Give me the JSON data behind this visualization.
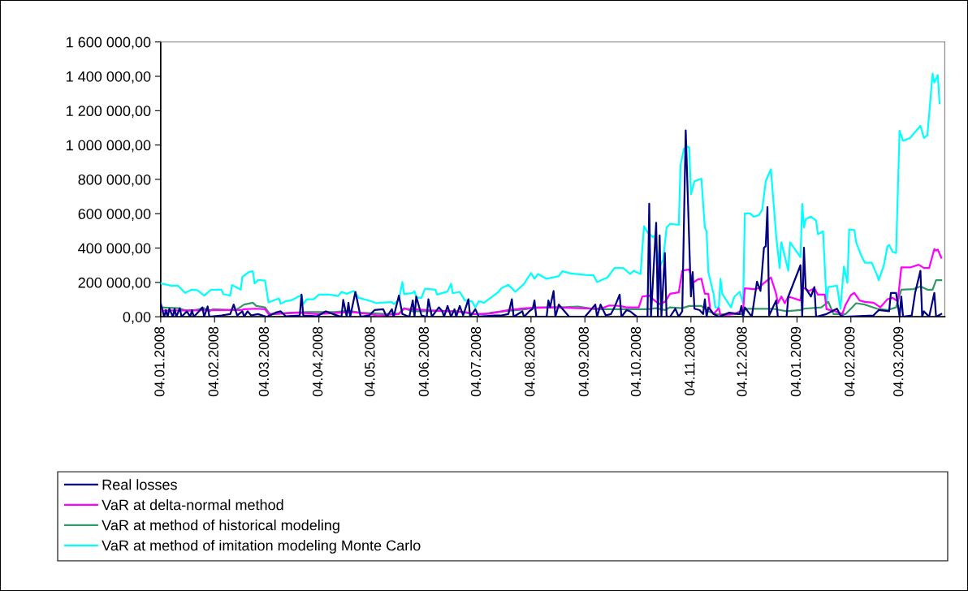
{
  "chart_data": {
    "type": "line",
    "legend": "bottom",
    "line_style": "solid",
    "grid": false,
    "xlim": [
      "2008-01-04",
      "2009-03-30"
    ],
    "xticks": [
      {
        "value": "2008-01-04",
        "label": "04.01.2008"
      },
      {
        "value": "2008-02-04",
        "label": "04.02.2008"
      },
      {
        "value": "2008-03-04",
        "label": "04.03.2008"
      },
      {
        "value": "2008-04-04",
        "label": "04.04.2008"
      },
      {
        "value": "2008-05-04",
        "label": "04.05.2008"
      },
      {
        "value": "2008-06-04",
        "label": "04.06.2008"
      },
      {
        "value": "2008-07-04",
        "label": "04.07.2008"
      },
      {
        "value": "2008-08-04",
        "label": "04.08.2008"
      },
      {
        "value": "2008-09-04",
        "label": "04.09.2008"
      },
      {
        "value": "2008-10-04",
        "label": "04.10.2008"
      },
      {
        "value": "2008-11-04",
        "label": "04.11.2008"
      },
      {
        "value": "2008-12-04",
        "label": "04.12.2008"
      },
      {
        "value": "2009-01-04",
        "label": "04.01.2009"
      },
      {
        "value": "2009-02-04",
        "label": "04.02.2009"
      },
      {
        "value": "2009-03-04",
        "label": "04.03.2009"
      }
    ],
    "ylim": [
      0,
      1600000
    ],
    "yticks": [
      {
        "value": 0,
        "label": "0,00"
      },
      {
        "value": 200000,
        "label": "200 000,00"
      },
      {
        "value": 400000,
        "label": "400 000,00"
      },
      {
        "value": 600000,
        "label": "600 000,00"
      },
      {
        "value": 800000,
        "label": "800 000,00"
      },
      {
        "value": 1000000,
        "label": "1 000 000,00"
      },
      {
        "value": 1200000,
        "label": "1 200 000,00"
      },
      {
        "value": 1400000,
        "label": "1 400 000,00"
      },
      {
        "value": 1600000,
        "label": "1 600 000,00"
      }
    ],
    "series": [
      {
        "name": "Real losses",
        "color": "#000080",
        "x": [
          "2008-01-04",
          "2008-01-06",
          "2008-01-07",
          "2008-01-08",
          "2008-01-09",
          "2008-01-11",
          "2008-01-12",
          "2008-01-13",
          "2008-01-15",
          "2008-01-16",
          "2008-01-19",
          "2008-01-21",
          "2008-01-22",
          "2008-01-23",
          "2008-01-26",
          "2008-01-28",
          "2008-01-29",
          "2008-01-31",
          "2008-02-01",
          "2008-02-08",
          "2008-02-13",
          "2008-02-15",
          "2008-02-17",
          "2008-02-20",
          "2008-02-21",
          "2008-02-23",
          "2008-02-25",
          "2008-02-29",
          "2008-03-05",
          "2008-03-10",
          "2008-03-13",
          "2008-03-16",
          "2008-03-24",
          "2008-03-25",
          "2008-03-26",
          "2008-04-03",
          "2008-04-08",
          "2008-04-12",
          "2008-04-17",
          "2008-04-18",
          "2008-04-20",
          "2008-04-21",
          "2008-04-22",
          "2008-04-25",
          "2008-04-28",
          "2008-05-03",
          "2008-05-06",
          "2008-05-11",
          "2008-05-13",
          "2008-05-16",
          "2008-05-17",
          "2008-05-20",
          "2008-05-22",
          "2008-05-26",
          "2008-05-28",
          "2008-05-29",
          "2008-05-30",
          "2008-06-02",
          "2008-06-05",
          "2008-06-06",
          "2008-06-08",
          "2008-06-12",
          "2008-06-14",
          "2008-06-15",
          "2008-06-17",
          "2008-06-19",
          "2008-06-21",
          "2008-06-22",
          "2008-06-24",
          "2008-06-26",
          "2008-06-29",
          "2008-06-30",
          "2008-07-03",
          "2008-07-05",
          "2008-07-14",
          "2008-07-18",
          "2008-07-22",
          "2008-07-24",
          "2008-07-25",
          "2008-07-30",
          "2008-07-31",
          "2008-08-03",
          "2008-08-05",
          "2008-08-06",
          "2008-08-07",
          "2008-08-13",
          "2008-08-14",
          "2008-08-15",
          "2008-08-17",
          "2008-08-18",
          "2008-08-20",
          "2008-08-26",
          "2008-09-04",
          "2008-09-10",
          "2008-09-11",
          "2008-09-13",
          "2008-09-16",
          "2008-09-19",
          "2008-09-21",
          "2008-09-24",
          "2008-09-25",
          "2008-09-28",
          "2008-09-30",
          "2008-10-02",
          "2008-10-04",
          "2008-10-10",
          "2008-10-11",
          "2008-10-12",
          "2008-10-15",
          "2008-10-16",
          "2008-10-17",
          "2008-10-18",
          "2008-10-20",
          "2008-10-21",
          "2008-10-23",
          "2008-10-26",
          "2008-10-28",
          "2008-10-30",
          "2008-11-01",
          "2008-11-04",
          "2008-11-05",
          "2008-11-06",
          "2008-11-09",
          "2008-11-11",
          "2008-11-12",
          "2008-11-13",
          "2008-11-14",
          "2008-11-17",
          "2008-11-20",
          "2008-11-26",
          "2008-12-02",
          "2008-12-03",
          "2008-12-04",
          "2008-12-05",
          "2008-12-09",
          "2008-12-12",
          "2008-12-14",
          "2008-12-16",
          "2008-12-17",
          "2008-12-18",
          "2008-12-19",
          "2008-12-23",
          "2008-12-24",
          "2008-12-29",
          "2008-12-30",
          "2009-01-06",
          "2009-01-07",
          "2009-01-08",
          "2009-01-09",
          "2009-01-12",
          "2009-01-14",
          "2009-01-15",
          "2009-01-21",
          "2009-01-27",
          "2009-01-29",
          "2009-02-01",
          "2009-02-17",
          "2009-02-20",
          "2009-02-26",
          "2009-02-27",
          "2009-03-02",
          "2009-03-04",
          "2009-03-05",
          "2009-03-06",
          "2009-03-11",
          "2009-03-13",
          "2009-03-16",
          "2009-03-17",
          "2009-03-18",
          "2009-03-21",
          "2009-03-24",
          "2009-03-25",
          "2009-03-28"
        ],
        "values": [
          79000,
          0,
          39000,
          0,
          47000,
          0,
          47000,
          0,
          50000,
          0,
          32000,
          0,
          39000,
          0,
          32000,
          55000,
          0,
          60000,
          0,
          8000,
          16000,
          71000,
          8000,
          32000,
          0,
          32000,
          8000,
          16000,
          0,
          24000,
          32000,
          3000,
          8000,
          129000,
          8000,
          3000,
          32000,
          16000,
          0,
          98000,
          0,
          82000,
          0,
          145000,
          0,
          8000,
          39000,
          44000,
          0,
          44000,
          0,
          123000,
          16000,
          0,
          95000,
          0,
          118000,
          8000,
          0,
          102000,
          0,
          55000,
          32000,
          0,
          63000,
          0,
          44000,
          0,
          63000,
          8000,
          102000,
          0,
          44000,
          0,
          8000,
          8000,
          16000,
          102000,
          0,
          32000,
          0,
          32000,
          47000,
          95000,
          0,
          0,
          95000,
          55000,
          150000,
          0,
          71000,
          0,
          0,
          71000,
          0,
          71000,
          8000,
          16000,
          55000,
          129000,
          0,
          39000,
          32000,
          16000,
          0,
          0,
          659000,
          0,
          547000,
          0,
          473000,
          0,
          371000,
          0,
          0,
          47000,
          0,
          32000,
          1085000,
          118000,
          260000,
          47000,
          39000,
          16000,
          102000,
          0,
          55000,
          16000,
          0,
          24000,
          16000,
          63000,
          0,
          55000,
          0,
          205000,
          150000,
          402000,
          410000,
          639000,
          8000,
          95000,
          0,
          0,
          118000,
          300000,
          0,
          402000,
          166000,
          118000,
          173000,
          0,
          16000,
          47000,
          8000,
          0,
          8000,
          39000,
          32000,
          139000,
          139000,
          0,
          118000,
          0,
          8000,
          142000,
          268000,
          0,
          32000,
          0,
          139000,
          0,
          16000
        ]
      },
      {
        "name": "VaR at delta-normal method",
        "color": "#ff00ff",
        "x": [
          "2008-01-04",
          "2008-02-13",
          "2008-02-19",
          "2008-02-21",
          "2008-02-28",
          "2008-03-04",
          "2008-03-06",
          "2008-03-24",
          "2008-04-03",
          "2008-04-23",
          "2008-05-03",
          "2008-05-08",
          "2008-05-20",
          "2008-05-23",
          "2008-06-04",
          "2008-06-12",
          "2008-06-27",
          "2008-07-03",
          "2008-07-12",
          "2008-07-22",
          "2008-08-01",
          "2008-08-16",
          "2008-08-31",
          "2008-09-10",
          "2008-09-14",
          "2008-09-18",
          "2008-09-24",
          "2008-09-28",
          "2008-10-05",
          "2008-10-07",
          "2008-10-11",
          "2008-10-14",
          "2008-10-17",
          "2008-10-20",
          "2008-10-23",
          "2008-10-28",
          "2008-10-30",
          "2008-11-03",
          "2008-11-05",
          "2008-11-08",
          "2008-11-10",
          "2008-11-12",
          "2008-11-14",
          "2008-11-15",
          "2008-11-17",
          "2008-11-20",
          "2008-11-21",
          "2008-11-29",
          "2008-12-03",
          "2008-12-04",
          "2008-12-05",
          "2008-12-10",
          "2008-12-13",
          "2008-12-16",
          "2008-12-20",
          "2008-12-23",
          "2008-12-24",
          "2008-12-26",
          "2008-12-28",
          "2008-12-30",
          "2009-01-06",
          "2009-01-07",
          "2009-01-11",
          "2009-01-14",
          "2009-01-16",
          "2009-01-20",
          "2009-01-21",
          "2009-01-26",
          "2009-01-30",
          "2009-02-01",
          "2009-02-04",
          "2009-02-06",
          "2009-02-09",
          "2009-02-12",
          "2009-02-17",
          "2009-02-21",
          "2009-02-25",
          "2009-02-28",
          "2009-03-03",
          "2009-03-05",
          "2009-03-10",
          "2009-03-15",
          "2009-03-18",
          "2009-03-21",
          "2009-03-24",
          "2009-03-25",
          "2009-03-26",
          "2009-03-28"
        ],
        "values": [
          36000,
          39000,
          39000,
          44000,
          47000,
          44000,
          16000,
          24000,
          16000,
          28000,
          16000,
          8000,
          16000,
          47000,
          39000,
          35000,
          28000,
          16000,
          19000,
          39000,
          50000,
          55000,
          50000,
          47000,
          50000,
          66000,
          63000,
          55000,
          55000,
          118000,
          123000,
          95000,
          74000,
          87000,
          134000,
          142000,
          268000,
          276000,
          197000,
          218000,
          221000,
          134000,
          134000,
          47000,
          16000,
          50000,
          8000,
          16000,
          35000,
          39000,
          166000,
          161000,
          166000,
          197000,
          229000,
          134000,
          79000,
          118000,
          79000,
          118000,
          95000,
          173000,
          150000,
          166000,
          129000,
          129000,
          44000,
          32000,
          16000,
          71000,
          126000,
          139000,
          95000,
          87000,
          82000,
          55000,
          102000,
          110000,
          91000,
          287000,
          287000,
          303000,
          284000,
          284000,
          394000,
          386000,
          391000,
          344000
        ]
      },
      {
        "name": "VaR at method of historical modeling",
        "color": "#339966",
        "x": [
          "2008-01-04",
          "2008-01-14",
          "2008-01-19",
          "2008-01-24",
          "2008-01-29",
          "2008-02-01",
          "2008-02-03",
          "2008-02-13",
          "2008-02-17",
          "2008-02-21",
          "2008-02-26",
          "2008-02-28",
          "2008-03-04",
          "2008-03-07",
          "2008-03-19",
          "2008-03-29",
          "2008-04-13",
          "2008-04-21",
          "2008-04-28",
          "2008-05-13",
          "2008-05-20",
          "2008-05-23",
          "2008-05-28",
          "2008-06-04",
          "2008-06-12",
          "2008-06-22",
          "2008-07-02",
          "2008-07-08",
          "2008-07-12",
          "2008-07-22",
          "2008-08-01",
          "2008-08-06",
          "2008-08-21",
          "2008-08-31",
          "2008-09-10",
          "2008-09-20",
          "2008-09-30",
          "2008-10-10",
          "2008-10-15",
          "2008-10-20",
          "2008-10-23",
          "2008-10-30",
          "2008-11-03",
          "2008-11-10",
          "2008-11-14",
          "2008-11-19",
          "2008-11-29",
          "2008-12-04",
          "2008-12-05",
          "2008-12-21",
          "2008-12-29",
          "2009-01-06",
          "2009-01-08",
          "2009-01-18",
          "2009-01-22",
          "2009-01-25",
          "2009-02-01",
          "2009-02-04",
          "2009-02-07",
          "2009-02-12",
          "2009-02-19",
          "2009-02-25",
          "2009-03-02",
          "2009-03-05",
          "2009-03-12",
          "2009-03-16",
          "2009-03-20",
          "2009-03-23",
          "2009-03-25",
          "2009-03-28"
        ],
        "values": [
          55000,
          50000,
          35000,
          39000,
          50000,
          32000,
          44000,
          39000,
          44000,
          71000,
          82000,
          63000,
          55000,
          13000,
          24000,
          28000,
          28000,
          35000,
          24000,
          16000,
          19000,
          50000,
          32000,
          32000,
          35000,
          32000,
          16000,
          13000,
          24000,
          35000,
          44000,
          55000,
          55000,
          60000,
          44000,
          44000,
          44000,
          44000,
          50000,
          39000,
          55000,
          50000,
          63000,
          63000,
          32000,
          13000,
          16000,
          16000,
          47000,
          47000,
          32000,
          39000,
          47000,
          55000,
          87000,
          16000,
          16000,
          47000,
          79000,
          71000,
          47000,
          39000,
          55000,
          158000,
          161000,
          177000,
          158000,
          158000,
          213000,
          213000
        ]
      },
      {
        "name": "VaR at method of imitation modeling Monte Carlo",
        "color": "#00ffff",
        "x": [
          "2008-01-04",
          "2008-01-10",
          "2008-01-14",
          "2008-01-18",
          "2008-01-22",
          "2008-01-25",
          "2008-01-29",
          "2008-02-02",
          "2008-02-08",
          "2008-02-09",
          "2008-02-13",
          "2008-02-14",
          "2008-02-19",
          "2008-02-20",
          "2008-02-24",
          "2008-02-26",
          "2008-02-27",
          "2008-02-29",
          "2008-03-04",
          "2008-03-06",
          "2008-03-12",
          "2008-03-13",
          "2008-03-16",
          "2008-03-19",
          "2008-03-25",
          "2008-03-26",
          "2008-03-28",
          "2008-04-01",
          "2008-04-04",
          "2008-04-10",
          "2008-04-15",
          "2008-04-17",
          "2008-04-20",
          "2008-04-24",
          "2008-04-27",
          "2008-05-04",
          "2008-05-07",
          "2008-05-09",
          "2008-05-16",
          "2008-05-17",
          "2008-05-20",
          "2008-05-22",
          "2008-05-23",
          "2008-05-28",
          "2008-05-29",
          "2008-05-30",
          "2008-06-02",
          "2008-06-04",
          "2008-06-10",
          "2008-06-11",
          "2008-06-17",
          "2008-06-19",
          "2008-06-20",
          "2008-06-24",
          "2008-06-27",
          "2008-07-01",
          "2008-07-03",
          "2008-07-05",
          "2008-07-08",
          "2008-07-16",
          "2008-07-18",
          "2008-07-22",
          "2008-07-26",
          "2008-07-31",
          "2008-08-04",
          "2008-08-06",
          "2008-08-08",
          "2008-08-13",
          "2008-08-20",
          "2008-08-22",
          "2008-08-27",
          "2008-09-04",
          "2008-09-09",
          "2008-09-11",
          "2008-09-17",
          "2008-09-21",
          "2008-09-26",
          "2008-09-30",
          "2008-10-02",
          "2008-10-06",
          "2008-10-08",
          "2008-10-10",
          "2008-10-13",
          "2008-10-14",
          "2008-10-17",
          "2008-10-19",
          "2008-10-21",
          "2008-10-23",
          "2008-10-28",
          "2008-10-29",
          "2008-10-31",
          "2008-11-02",
          "2008-11-03",
          "2008-11-04",
          "2008-11-06",
          "2008-11-10",
          "2008-11-12",
          "2008-11-13",
          "2008-11-14",
          "2008-11-17",
          "2008-11-18",
          "2008-11-20",
          "2008-11-21",
          "2008-11-22",
          "2008-11-27",
          "2008-11-29",
          "2008-12-02",
          "2008-12-04",
          "2008-12-05",
          "2008-12-08",
          "2008-12-10",
          "2008-12-13",
          "2008-12-15",
          "2008-12-17",
          "2008-12-20",
          "2008-12-23",
          "2008-12-25",
          "2008-12-26",
          "2008-12-30",
          "2008-12-31",
          "2009-01-06",
          "2009-01-07",
          "2009-01-08",
          "2009-01-09",
          "2009-01-12",
          "2009-01-15",
          "2009-01-16",
          "2009-01-19",
          "2009-01-21",
          "2009-01-22",
          "2009-01-27",
          "2009-01-29",
          "2009-01-31",
          "2009-02-02",
          "2009-02-03",
          "2009-02-06",
          "2009-02-07",
          "2009-02-10",
          "2009-02-12",
          "2009-02-16",
          "2009-02-19",
          "2009-02-20",
          "2009-02-23",
          "2009-02-25",
          "2009-02-26",
          "2009-02-28",
          "2009-03-02",
          "2009-03-04",
          "2009-03-06",
          "2009-03-10",
          "2009-03-12",
          "2009-03-16",
          "2009-03-18",
          "2009-03-20",
          "2009-03-23",
          "2009-03-24",
          "2009-03-26",
          "2009-03-27"
        ],
        "values": [
          194000,
          181000,
          181000,
          139000,
          158000,
          155000,
          123000,
          158000,
          158000,
          132000,
          123000,
          185000,
          158000,
          233000,
          262000,
          265000,
          194000,
          214000,
          211000,
          84000,
          107000,
          76000,
          91000,
          95000,
          126000,
          74000,
          102000,
          102000,
          129000,
          129000,
          121000,
          145000,
          134000,
          150000,
          110000,
          91000,
          79000,
          82000,
          85000,
          74000,
          99000,
          202000,
          132000,
          139000,
          150000,
          113000,
          110000,
          163000,
          158000,
          129000,
          147000,
          192000,
          137000,
          145000,
          95000,
          90000,
          55000,
          91000,
          82000,
          142000,
          166000,
          186000,
          145000,
          192000,
          255000,
          221000,
          249000,
          221000,
          237000,
          265000,
          252000,
          244000,
          241000,
          202000,
          229000,
          284000,
          284000,
          249000,
          268000,
          249000,
          528000,
          492000,
          465000,
          470000,
          292000,
          331000,
          520000,
          541000,
          536000,
          883000,
          978000,
          990000,
          986000,
          713000,
          789000,
          804000,
          520000,
          497000,
          260000,
          134000,
          55000,
          52000,
          221000,
          134000,
          55000,
          118000,
          145000,
          79000,
          602000,
          602000,
          583000,
          591000,
          623000,
          789000,
          859000,
          473000,
          284000,
          434000,
          268000,
          434000,
          347000,
          658000,
          520000,
          568000,
          583000,
          560000,
          481000,
          497000,
          79000,
          173000,
          181000,
          47000,
          292000,
          197000,
          508000,
          505000,
          434000,
          355000,
          315000,
          315000,
          244000,
          213000,
          300000,
          410000,
          418000,
          378000,
          371000,
          1083000,
          1025000,
          1041000,
          1064000,
          1112000,
          1041000,
          1057000,
          1416000,
          1364000,
          1407000,
          1243000
        ]
      }
    ]
  }
}
